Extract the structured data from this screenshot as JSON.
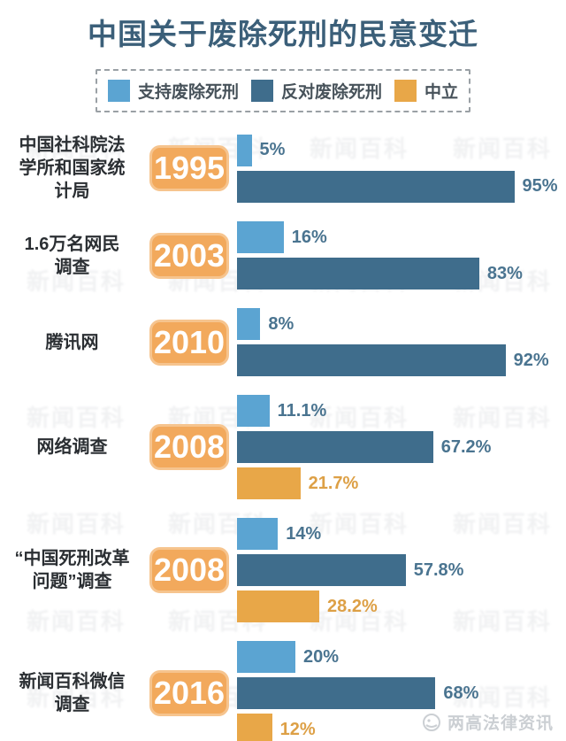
{
  "title": "中国关于废除死刑的民意变迁",
  "colors": {
    "title": "#3b5f79",
    "support": "#5ba4d2",
    "oppose": "#3f6d8c",
    "neutral": "#e8a748",
    "blue_label": "#4a7490",
    "neutral_label": "#dda046",
    "badge_bg": "#f2a95c",
    "badge_border": "#f6c48e",
    "group_label": "#2b2f33",
    "watermark": "#9aa0a8"
  },
  "legend": {
    "items": [
      {
        "key": "support",
        "label": "支持废除死刑",
        "color": "#5ba4d2"
      },
      {
        "key": "oppose",
        "label": "反对废除死刑",
        "color": "#3f6d8c"
      },
      {
        "key": "neutral",
        "label": "中立",
        "color": "#e8a748"
      }
    ]
  },
  "chart_data": {
    "type": "bar",
    "orientation": "horizontal",
    "title": "中国关于废除死刑的民意变迁",
    "unit": "%",
    "xlim": [
      0,
      100
    ],
    "grid": false,
    "legend_position": "top",
    "series_names": [
      "支持废除死刑",
      "反对废除死刑",
      "中立"
    ],
    "groups": [
      {
        "year": "1995",
        "source_lines": [
          "中国社科院法",
          "学所和国家统",
          "计局"
        ],
        "values": [
          {
            "series": "support",
            "value": 5,
            "label": "5%"
          },
          {
            "series": "oppose",
            "value": 95,
            "label": "95%"
          }
        ]
      },
      {
        "year": "2003",
        "source_lines": [
          "1.6万名网民",
          "调查"
        ],
        "values": [
          {
            "series": "support",
            "value": 16,
            "label": "16%"
          },
          {
            "series": "oppose",
            "value": 83,
            "label": "83%"
          }
        ]
      },
      {
        "year": "2010",
        "source_lines": [
          "腾讯网"
        ],
        "values": [
          {
            "series": "support",
            "value": 8,
            "label": "8%"
          },
          {
            "series": "oppose",
            "value": 92,
            "label": "92%"
          }
        ]
      },
      {
        "year": "2008",
        "source_lines": [
          "网络调查"
        ],
        "values": [
          {
            "series": "support",
            "value": 11.1,
            "label": "11.1%"
          },
          {
            "series": "oppose",
            "value": 67.2,
            "label": "67.2%"
          },
          {
            "series": "neutral",
            "value": 21.7,
            "label": "21.7%"
          }
        ]
      },
      {
        "year": "2008",
        "source_lines": [
          "“中国死刑改革",
          "问题”调查"
        ],
        "values": [
          {
            "series": "support",
            "value": 14,
            "label": "14%"
          },
          {
            "series": "oppose",
            "value": 57.8,
            "label": "57.8%"
          },
          {
            "series": "neutral",
            "value": 28.2,
            "label": "28.2%"
          }
        ]
      },
      {
        "year": "2016",
        "source_lines": [
          "新闻百科微信",
          "调查"
        ],
        "values": [
          {
            "series": "support",
            "value": 20,
            "label": "20%"
          },
          {
            "series": "oppose",
            "value": 68,
            "label": "68%"
          },
          {
            "series": "neutral",
            "value": 12,
            "label": "12%"
          }
        ]
      }
    ]
  },
  "watermark": {
    "text": "新闻百科"
  },
  "footer": {
    "brand": "两高法律资讯"
  }
}
